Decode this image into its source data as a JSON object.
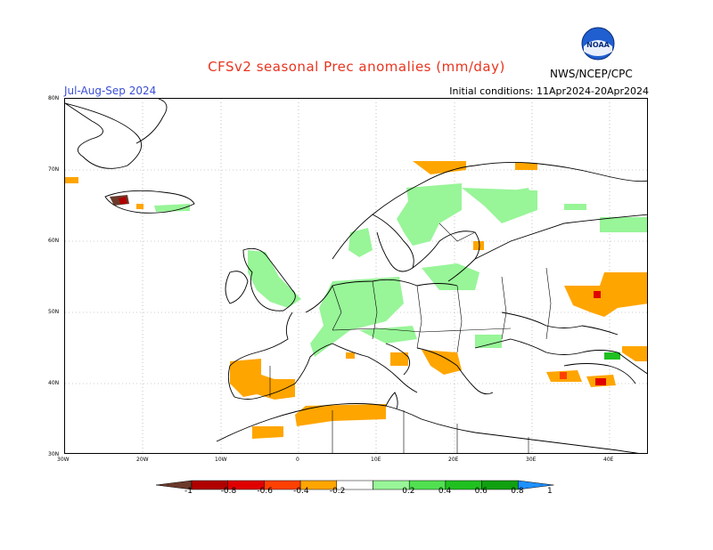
{
  "header": {
    "title": "CFSv2 seasonal Prec anomalies (mm/day)",
    "season": "Jul-Aug-Sep 2024",
    "initial_conditions": "Initial conditions: 11Apr2024-20Apr2024",
    "org": "NWS/NCEP/CPC",
    "logo_text": "NOAA"
  },
  "axes": {
    "lat_labels": [
      "80N",
      "70N",
      "60N",
      "50N",
      "40N",
      "30N"
    ],
    "lon_labels": [
      "30W",
      "20W",
      "10W",
      "0",
      "10E",
      "20E",
      "30E",
      "40E"
    ]
  },
  "colorbar": {
    "labels": [
      "-1",
      "-0.8",
      "-0.6",
      "-0.4",
      "-0.2",
      "0.2",
      "0.4",
      "0.6",
      "0.8",
      "1"
    ],
    "colors": [
      "#6b3a2a",
      "#b00000",
      "#e00000",
      "#ff4000",
      "#ffa500",
      "#ffffff",
      "#98f598",
      "#50e050",
      "#20c020",
      "#10a010",
      "#1e90ff"
    ]
  },
  "map_data": {
    "lon_range": [
      -30,
      45
    ],
    "lat_range": [
      30,
      80
    ],
    "anomaly_regions": [
      {
        "name": "Scandinavia",
        "value": 0.3
      },
      {
        "name": "British Isles",
        "value": 0.3
      },
      {
        "name": "Central Europe",
        "value": 0.3
      },
      {
        "name": "Iberia",
        "value": -0.3
      },
      {
        "name": "North Africa",
        "value": -0.3
      },
      {
        "name": "Southern Russia",
        "value": -0.3
      },
      {
        "name": "Caucasus",
        "value": -0.5
      },
      {
        "name": "Iceland",
        "value": -0.9
      }
    ]
  }
}
